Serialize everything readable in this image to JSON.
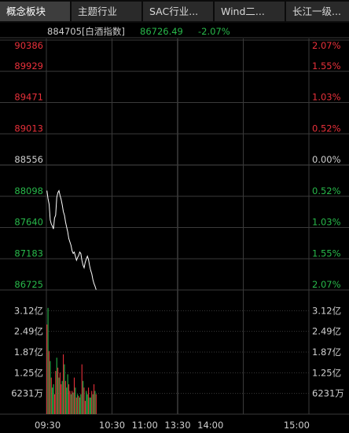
{
  "tabs": [
    {
      "label": "概念板块",
      "active": true
    },
    {
      "label": "主题行业",
      "active": false
    },
    {
      "label": "SAC行业...",
      "active": false
    },
    {
      "label": "Wind二...",
      "active": false
    },
    {
      "label": "长江一级...",
      "active": false
    }
  ],
  "header": {
    "code_name": "884705[白酒指数]",
    "last_price": "86726.49",
    "change_pct": "-2.07%"
  },
  "colors": {
    "up": "#e8303a",
    "down": "#28b84a",
    "neutral": "#cfcfcf",
    "price_line": "#ffffff",
    "grid": "#3a3a3a"
  },
  "chart_data": [
    {
      "type": "line",
      "series": [
        {
          "values": [
            88180,
            88060,
            87980,
            87750,
            87690,
            87660,
            87620,
            87780,
            87820,
            88080,
            88150,
            88180,
            88110,
            88050,
            87970,
            87870,
            87820,
            87720,
            87650,
            87580,
            87480,
            87430,
            87380,
            87300,
            87260,
            87280,
            87220,
            87160,
            87200,
            87230,
            87280,
            87260,
            87160,
            87090,
            87050,
            87130,
            87180,
            87220,
            87170,
            87080,
            87010,
            86960,
            86880,
            86820,
            86780,
            86730
          ]
        }
      ],
      "x_tick_labels": [
        "09:30",
        "10:30",
        "11:00",
        "13:30",
        "14:00",
        "15:00"
      ],
      "y_price_labels": [
        "90386",
        "89929",
        "89471",
        "89013",
        "88556",
        "88098",
        "87640",
        "87183",
        "86725"
      ],
      "y_pct_labels": [
        "2.07%",
        "1.55%",
        "1.03%",
        "0.52%",
        "0.00%",
        "0.52%",
        "1.03%",
        "1.55%",
        "2.07%"
      ],
      "ylim": [
        86725,
        90386
      ],
      "ref_price": 88556
    },
    {
      "type": "bar",
      "values": [
        2.7,
        3.2,
        1.9,
        1.6,
        1.1,
        0.8,
        0.9,
        0.6,
        1.3,
        1.7,
        1.4,
        1.1,
        1.25,
        0.9,
        1.0,
        1.8,
        1.5,
        1.0,
        0.8,
        1.2,
        0.9,
        0.7,
        0.6,
        0.7,
        0.65,
        1.1,
        0.8,
        0.5,
        0.6,
        0.55,
        0.5,
        0.6,
        1.5,
        1.0,
        0.8,
        0.4,
        0.7,
        0.6,
        0.8,
        0.5,
        0.5,
        0.7,
        0.6,
        0.9,
        0.7,
        0.6
      ],
      "colors": [
        "up",
        "down",
        "up",
        "down",
        "up",
        "down",
        "down",
        "up",
        "up",
        "down",
        "up",
        "down",
        "up",
        "up",
        "down",
        "up",
        "down",
        "up",
        "down",
        "down",
        "up",
        "up",
        "down",
        "up",
        "down",
        "up",
        "down",
        "up",
        "down",
        "up",
        "down",
        "down",
        "up",
        "down",
        "up",
        "up",
        "down",
        "down",
        "up",
        "down",
        "down",
        "up",
        "down",
        "up",
        "down",
        "up"
      ],
      "y_labels": [
        "3.12亿",
        "2.49亿",
        "1.87亿",
        "1.25亿",
        "6231万"
      ],
      "ylim": [
        0,
        3.74
      ]
    }
  ]
}
